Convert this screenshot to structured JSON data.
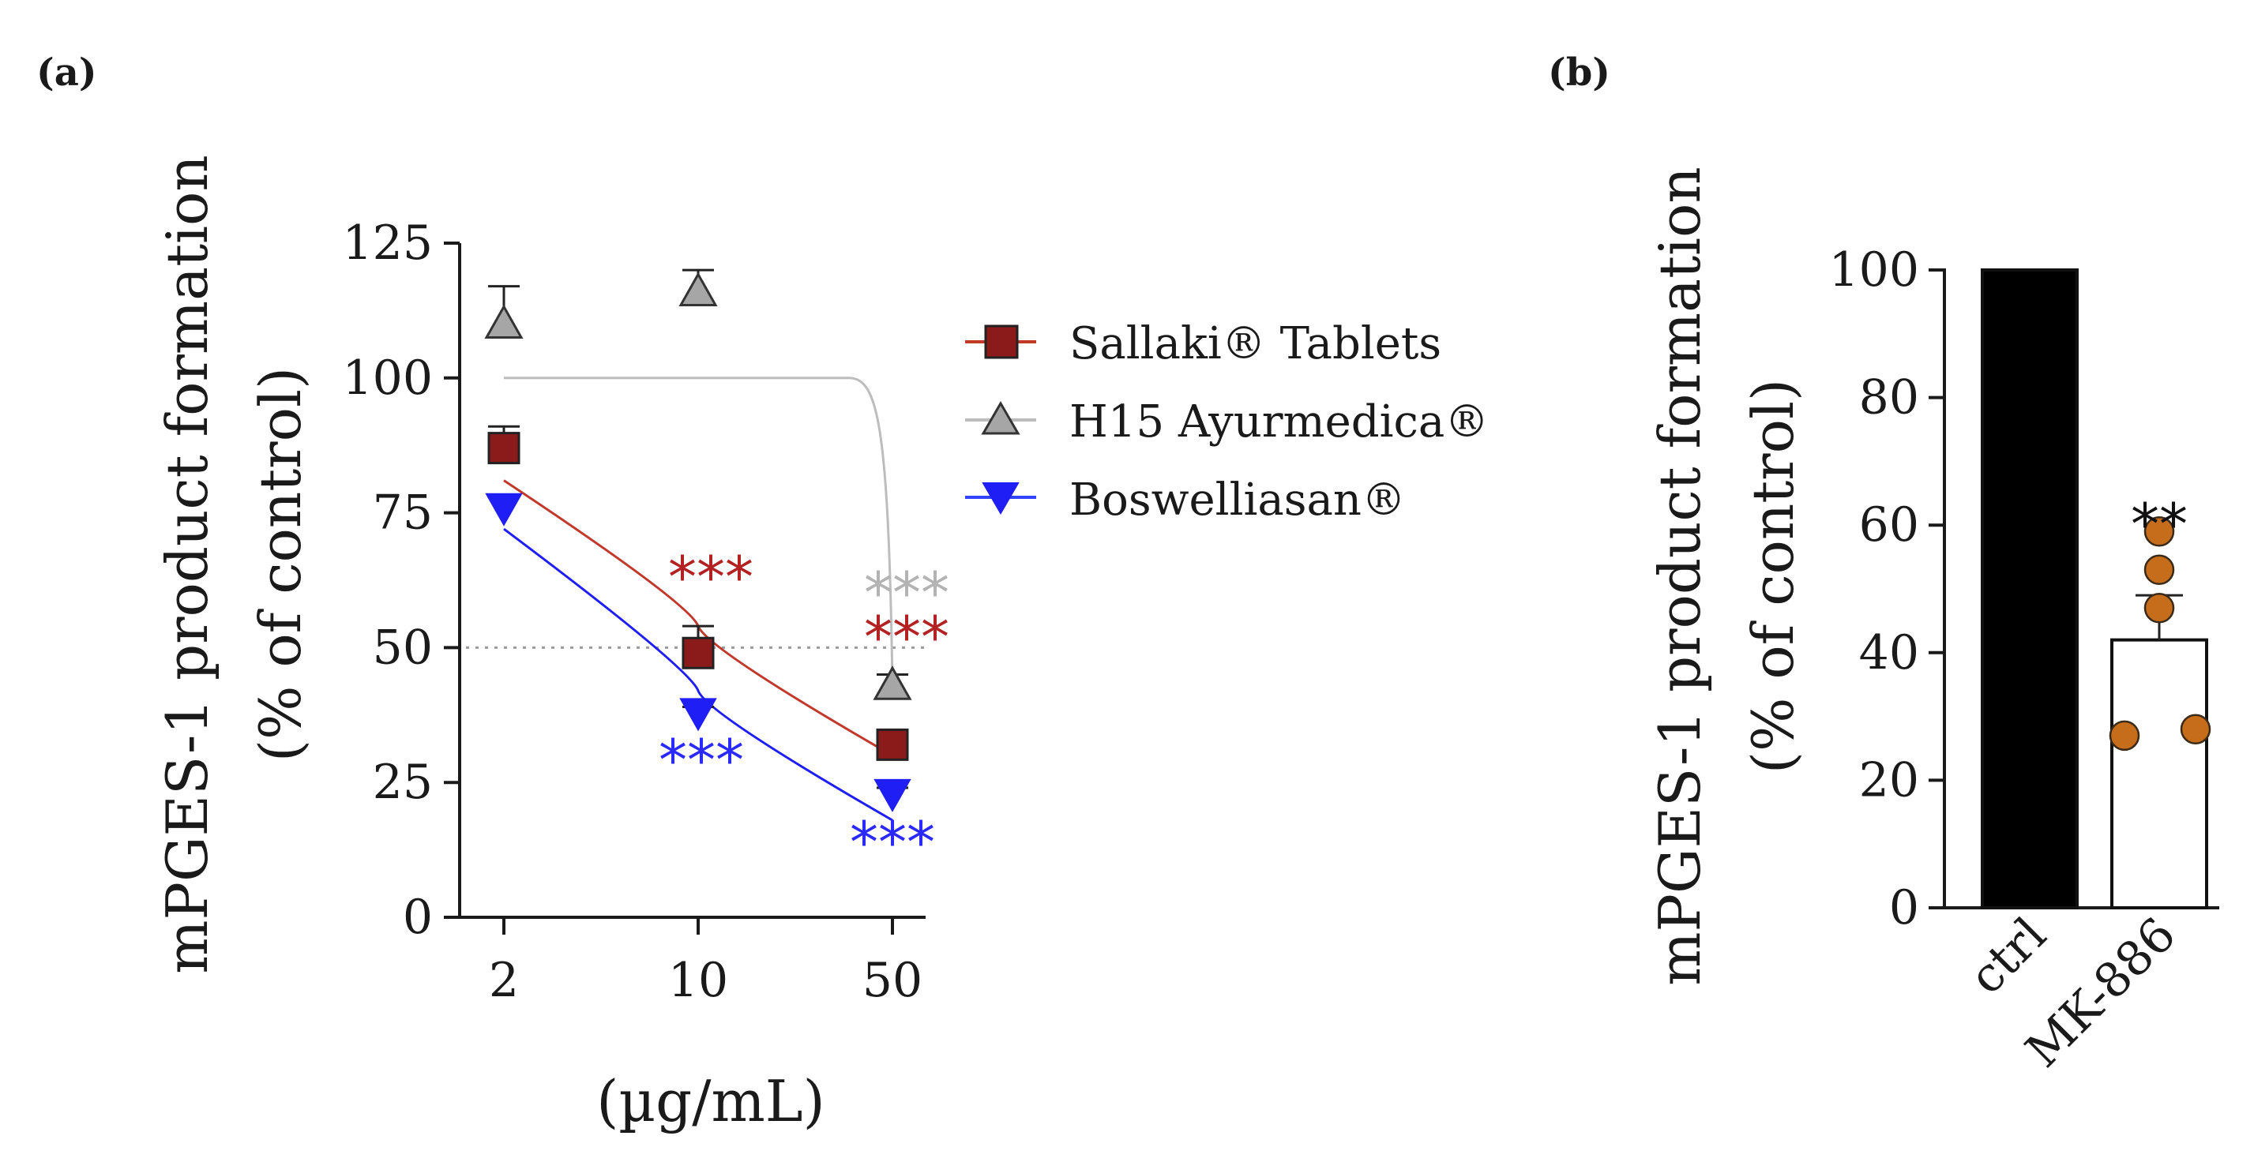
{
  "panels": {
    "a": {
      "label": "(a)"
    },
    "b": {
      "label": "(b)"
    }
  },
  "colors": {
    "sallaki": "#8b1a1a",
    "sallaki_fit": "#c0392b",
    "h15": "#a6a6a6",
    "h15_line": "#bdbdbd",
    "boswelliasan": "#1f1ff5",
    "bar_ctrl": "#000000",
    "dots": "#c66d1b",
    "star_sallaki": "#b22222",
    "star_h15": "#b3b3b3",
    "star_bosw": "#2a2aff",
    "star_black": "#111111"
  },
  "chart_data": [
    {
      "type": "scatter",
      "panel": "a",
      "ylabel_line1": "mPGES-1 product formation",
      "ylabel_line2": "(% of control)",
      "xlabel": "(µg/mL)",
      "xscale": "log",
      "x": [
        2,
        10,
        50
      ],
      "xticks": [
        "2",
        "10",
        "50"
      ],
      "ylim": [
        0,
        125
      ],
      "yticks": [
        "0",
        "25",
        "50",
        "75",
        "100",
        "125"
      ],
      "reference_line": 50,
      "legend_position": "right",
      "series": [
        {
          "name": "Sallaki® Tablets",
          "marker": "square",
          "values": [
            87,
            49,
            32
          ],
          "errors": [
            4,
            5,
            2
          ],
          "fit": [
            81,
            54,
            30
          ],
          "significance": [
            "",
            "***",
            "***"
          ]
        },
        {
          "name": "H15 Ayurmedica®",
          "marker": "triangle-up",
          "values": [
            110,
            116,
            43
          ],
          "errors": [
            7,
            4,
            2
          ],
          "fit": [
            100,
            100,
            43
          ],
          "significance": [
            "",
            "",
            "***"
          ]
        },
        {
          "name": "Boswelliasan®",
          "marker": "triangle-down",
          "values": [
            76,
            38,
            23
          ],
          "errors": [
            2,
            1,
            1
          ],
          "fit": [
            72,
            42,
            18
          ],
          "significance": [
            "",
            "***",
            "***"
          ]
        }
      ]
    },
    {
      "type": "bar",
      "panel": "b",
      "ylabel_line1": "mPGES-1 product formation",
      "ylabel_line2": "(% of control)",
      "categories": [
        "ctrl",
        "MK-886"
      ],
      "values": [
        100,
        42
      ],
      "errors": [
        0,
        7
      ],
      "points": [
        [],
        [
          59,
          53,
          47,
          28,
          27
        ]
      ],
      "significance": [
        "",
        "**"
      ],
      "ylim": [
        0,
        100
      ],
      "yticks": [
        "0",
        "20",
        "40",
        "60",
        "80",
        "100"
      ]
    }
  ]
}
